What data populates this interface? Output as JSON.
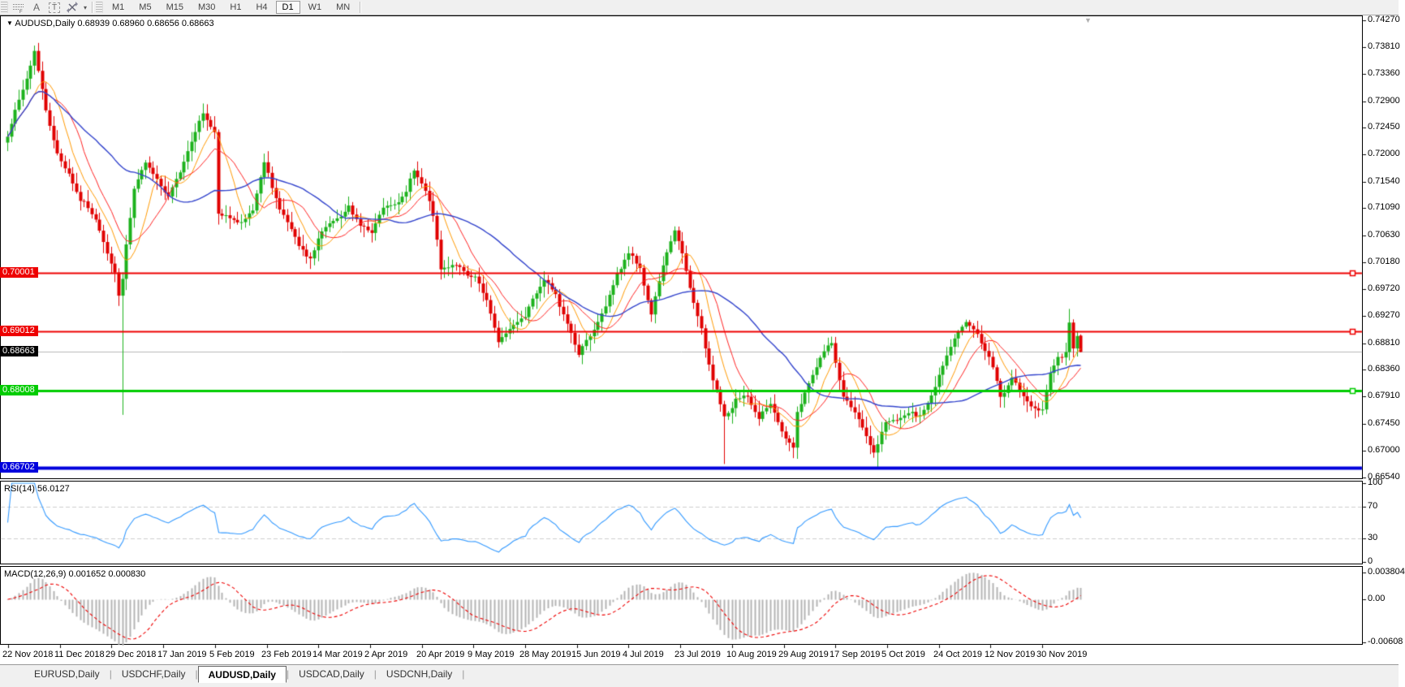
{
  "toolbar": {
    "tools": [
      {
        "name": "chart-shift-icon"
      },
      {
        "name": "text-a-icon",
        "glyph": "A"
      },
      {
        "name": "text-label-icon",
        "glyph": "T"
      },
      {
        "name": "shapes-icon"
      },
      {
        "name": "dropdown-arrow-icon",
        "glyph": "▾"
      }
    ],
    "timeframes": [
      "M1",
      "M5",
      "M15",
      "M30",
      "H1",
      "H4",
      "D1",
      "W1",
      "MN"
    ],
    "active_timeframe": "D1"
  },
  "chart": {
    "dropdown_glyph": "▼",
    "symbol_title": "AUDUSD,Daily",
    "title_values": {
      "open": "0.68939",
      "high": "0.68960",
      "low": "0.68656",
      "close": "0.68663"
    },
    "price_axis": [
      "0.74270",
      "0.73810",
      "0.73360",
      "0.72900",
      "0.72450",
      "0.72000",
      "0.71540",
      "0.71090",
      "0.70630",
      "0.70180",
      "0.69720",
      "0.69270",
      "0.68810",
      "0.68360",
      "0.67910",
      "0.67450",
      "0.67000",
      "0.66540"
    ],
    "levels": [
      {
        "value": "0.70001",
        "price": 0.70001,
        "color": "#ee0000",
        "thickness": 2,
        "handles": true
      },
      {
        "value": "0.69012",
        "price": 0.69012,
        "color": "#ee0000",
        "thickness": 2,
        "handles": true
      },
      {
        "value": "0.68008",
        "price": 0.68008,
        "color": "#00cc00",
        "thickness": 3,
        "handles": true
      },
      {
        "value": "0.66702",
        "price": 0.66702,
        "color": "#0000dd",
        "thickness": 4,
        "handles": false
      }
    ],
    "current_price": {
      "value": "0.68663",
      "price": 0.68663,
      "line_color": "#b8b8b8",
      "badge_color": "#000000"
    },
    "end_marker_glyph": "▼"
  },
  "rsi": {
    "label": "RSI(14) 56.0127",
    "scale": [
      {
        "text": "100",
        "value": 100
      },
      {
        "text": "70",
        "value": 70
      },
      {
        "text": "30",
        "value": 30
      },
      {
        "text": "0",
        "value": 0
      }
    ],
    "line_color": "#3399ff"
  },
  "macd": {
    "label": "MACD(12,26,9) 0.001652 0.000830",
    "scale": [
      {
        "text": "0.003804",
        "value": 0.003804
      },
      {
        "text": "0.00",
        "value": 0.0
      },
      {
        "text": "-0.00608",
        "value": -0.00608
      }
    ],
    "histogram_color": "#b4b4b4",
    "signal_color": "#ee0000"
  },
  "date_axis": [
    "22 Nov 2018",
    "11 Dec 2018",
    "29 Dec 2018",
    "17 Jan 2019",
    "5 Feb 2019",
    "23 Feb 2019",
    "14 Mar 2019",
    "2 Apr 2019",
    "20 Apr 2019",
    "9 May 2019",
    "28 May 2019",
    "15 Jun 2019",
    "4 Jul 2019",
    "23 Jul 2019",
    "10 Aug 2019",
    "29 Aug 2019",
    "17 Sep 2019",
    "5 Oct 2019",
    "24 Oct 2019",
    "12 Nov 2019",
    "30 Nov 2019"
  ],
  "tabs": [
    {
      "label": "EURUSD,Daily",
      "active": false
    },
    {
      "label": "USDCHF,Daily",
      "active": false
    },
    {
      "label": "AUDUSD,Daily",
      "active": true
    },
    {
      "label": "USDCAD,Daily",
      "active": false
    },
    {
      "label": "USDCNH,Daily",
      "active": false
    }
  ],
  "chart_data": {
    "type": "candlestick",
    "symbol": "AUDUSD",
    "timeframe": "Daily",
    "bars": 281,
    "last_candle": {
      "open": 0.68939,
      "high": 0.6896,
      "low": 0.68656,
      "close": 0.68663
    },
    "price_axis_range": {
      "top": 0.7427,
      "bottom": 0.6654
    },
    "up_color": "#1cb21c",
    "down_color": "#e00000",
    "ma_colors": {
      "fast": "#ff9900",
      "mid": "#ff2222",
      "slow": "#3344cc"
    },
    "ma_periods": {
      "fast": 8,
      "mid": 13,
      "slow": 34
    },
    "price_path": [
      [
        0,
        0.723
      ],
      [
        4,
        0.731
      ],
      [
        7,
        0.7372
      ],
      [
        10,
        0.727
      ],
      [
        13,
        0.721
      ],
      [
        16,
        0.717
      ],
      [
        19,
        0.712
      ],
      [
        23,
        0.709
      ],
      [
        26,
        0.704
      ],
      [
        28,
        0.7
      ],
      [
        29,
        0.696
      ],
      [
        30,
        0.699
      ],
      [
        31,
        0.705
      ],
      [
        33,
        0.714
      ],
      [
        36,
        0.719
      ],
      [
        39,
        0.716
      ],
      [
        42,
        0.7135
      ],
      [
        45,
        0.716
      ],
      [
        48,
        0.722
      ],
      [
        51,
        0.727
      ],
      [
        54,
        0.7235
      ],
      [
        55,
        0.71
      ],
      [
        58,
        0.709
      ],
      [
        61,
        0.7085
      ],
      [
        64,
        0.711
      ],
      [
        67,
        0.7185
      ],
      [
        70,
        0.713
      ],
      [
        73,
        0.709
      ],
      [
        76,
        0.705
      ],
      [
        79,
        0.702
      ],
      [
        82,
        0.707
      ],
      [
        85,
        0.709
      ],
      [
        89,
        0.712
      ],
      [
        92,
        0.708
      ],
      [
        95,
        0.707
      ],
      [
        98,
        0.711
      ],
      [
        101,
        0.712
      ],
      [
        104,
        0.714
      ],
      [
        106,
        0.7175
      ],
      [
        109,
        0.714
      ],
      [
        111,
        0.71
      ],
      [
        113,
        0.701
      ],
      [
        116,
        0.702
      ],
      [
        119,
        0.7
      ],
      [
        122,
        0.699
      ],
      [
        125,
        0.695
      ],
      [
        128,
        0.689
      ],
      [
        131,
        0.691
      ],
      [
        135,
        0.6925
      ],
      [
        140,
        0.699
      ],
      [
        143,
        0.696
      ],
      [
        146,
        0.691
      ],
      [
        149,
        0.687
      ],
      [
        152,
        0.689
      ],
      [
        155,
        0.693
      ],
      [
        159,
        0.7
      ],
      [
        162,
        0.703
      ],
      [
        165,
        0.701
      ],
      [
        168,
        0.693
      ],
      [
        172,
        0.704
      ],
      [
        174,
        0.707
      ],
      [
        177,
        0.7
      ],
      [
        181,
        0.69
      ],
      [
        183,
        0.684
      ],
      [
        185,
        0.68
      ],
      [
        187,
        0.676
      ],
      [
        190,
        0.679
      ],
      [
        193,
        0.678
      ],
      [
        196,
        0.676
      ],
      [
        199,
        0.678
      ],
      [
        202,
        0.673
      ],
      [
        205,
        0.67
      ],
      [
        206,
        0.676
      ],
      [
        209,
        0.681
      ],
      [
        212,
        0.686
      ],
      [
        215,
        0.688
      ],
      [
        218,
        0.679
      ],
      [
        221,
        0.676
      ],
      [
        224,
        0.672
      ],
      [
        226,
        0.67
      ],
      [
        229,
        0.674
      ],
      [
        232,
        0.675
      ],
      [
        235,
        0.677
      ],
      [
        238,
        0.676
      ],
      [
        241,
        0.679
      ],
      [
        244,
        0.684
      ],
      [
        247,
        0.688
      ],
      [
        250,
        0.692
      ],
      [
        253,
        0.69
      ],
      [
        256,
        0.686
      ],
      [
        259,
        0.679
      ],
      [
        262,
        0.682
      ],
      [
        265,
        0.679
      ],
      [
        268,
        0.677
      ],
      [
        270,
        0.6762
      ],
      [
        272,
        0.682
      ],
      [
        274,
        0.685
      ],
      [
        276,
        0.686
      ],
      [
        277,
        0.6917
      ],
      [
        278,
        0.687
      ],
      [
        279,
        0.6894
      ],
      [
        280,
        0.68663
      ]
    ],
    "special_bars": {
      "30": {
        "low": 0.676
      },
      "187": {
        "low": 0.6677
      },
      "227": {
        "low": 0.667
      },
      "277": {
        "high": 0.6939
      },
      "280": {
        "open": 0.68939,
        "high": 0.6896,
        "low": 0.68656,
        "close": 0.68663
      }
    },
    "indicators": {
      "rsi": {
        "period": 14,
        "last": 56.0127,
        "guide_levels": [
          70,
          30
        ]
      },
      "macd": {
        "fast": 12,
        "slow": 26,
        "signal": 9,
        "last_main": 0.001652,
        "last_signal": 0.00083
      }
    }
  }
}
